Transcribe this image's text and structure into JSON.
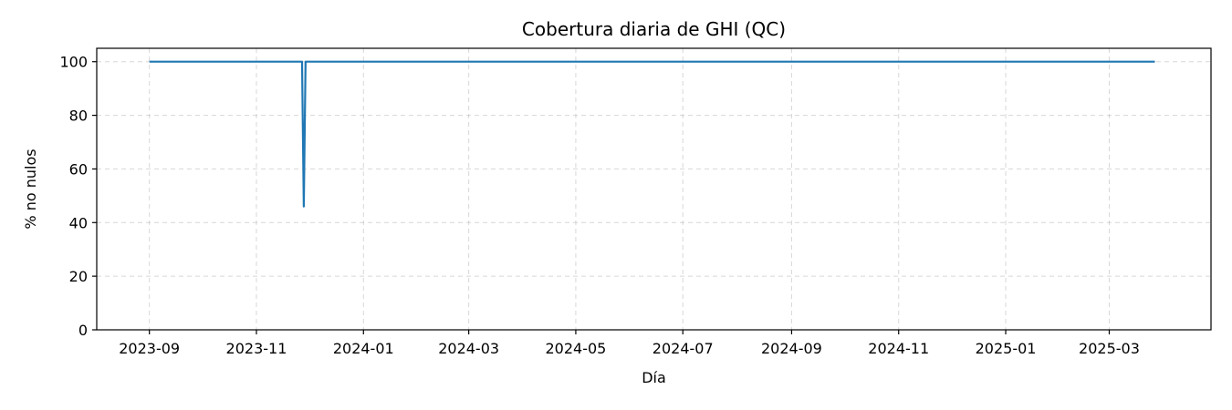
{
  "chart_data": {
    "type": "line",
    "title": "Cobertura diaria de GHI (QC)",
    "xlabel": "Día",
    "ylabel": "% no nulos",
    "ylim": [
      0,
      105
    ],
    "xlim": [
      "2023-08-02",
      "2025-04-28"
    ],
    "grid": true,
    "yticks": [
      0,
      20,
      40,
      60,
      80,
      100
    ],
    "xticks": [
      "2023-09",
      "2023-11",
      "2024-01",
      "2024-03",
      "2024-05",
      "2024-07",
      "2024-09",
      "2024-11",
      "2025-01",
      "2025-03"
    ],
    "line_color": "#1f77b4",
    "series": [
      {
        "x": [
          "2023-09-01",
          "2023-11-27",
          "2023-11-28",
          "2023-11-29",
          "2025-03-27"
        ],
        "values": [
          100,
          100,
          46,
          100,
          100
        ]
      }
    ]
  }
}
